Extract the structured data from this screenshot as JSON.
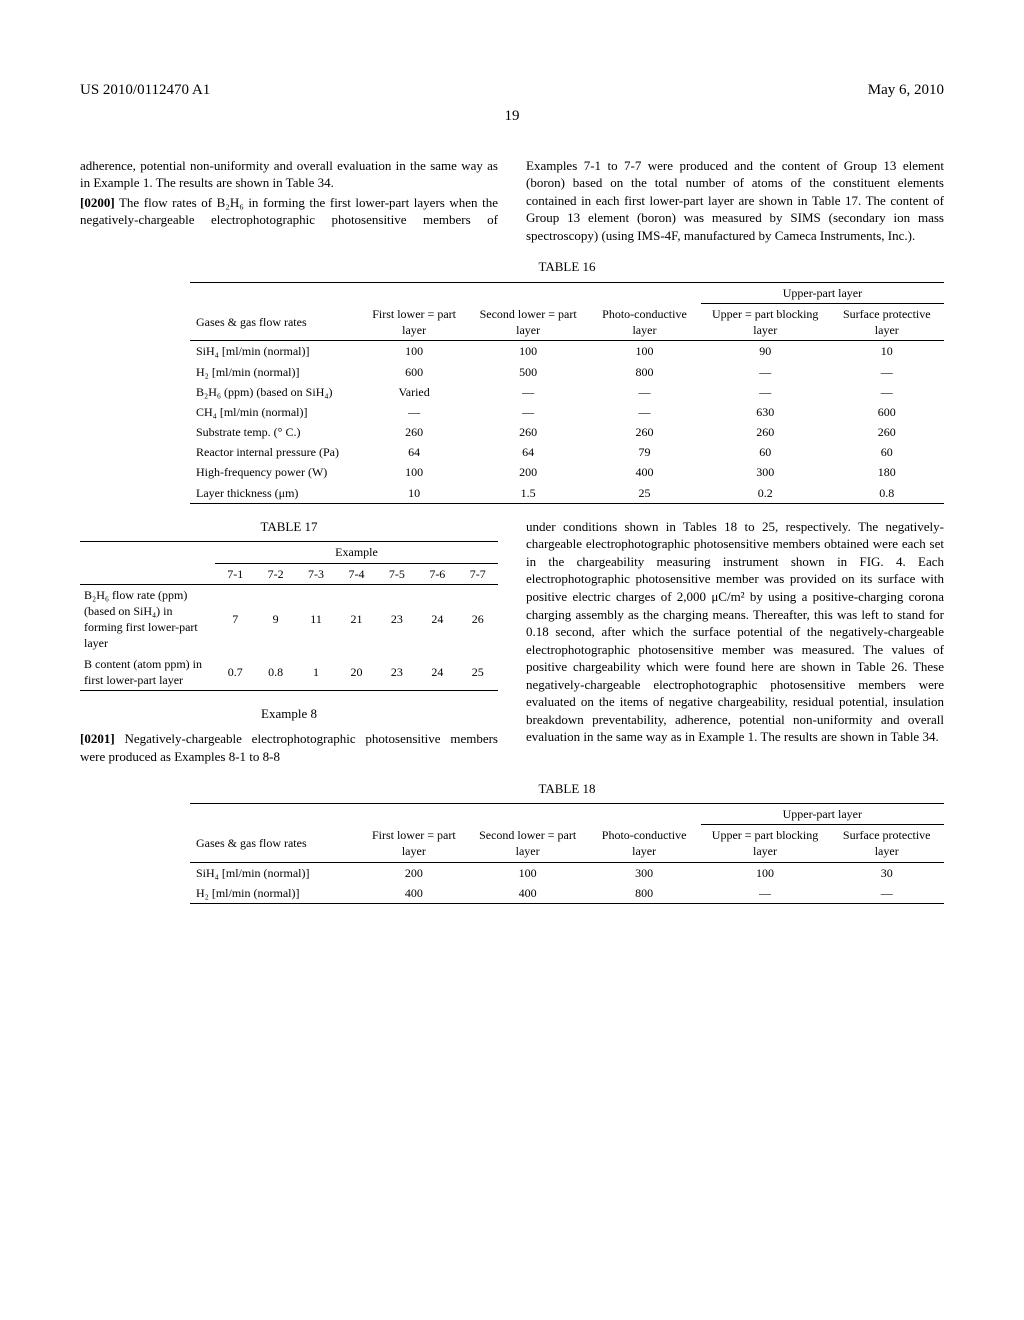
{
  "header": {
    "pub_number": "US 2010/0112470 A1",
    "date": "May 6, 2010",
    "page": "19"
  },
  "col1": {
    "p1": "adherence, potential non-uniformity and overall evaluation in the same way as in Example 1. The results are shown in Table 34.",
    "p2_num": "[0200]",
    "p2": " The flow rates of B₂H₆ in forming the first lower-part layers when the negatively-chargeable electrophotographic photosensitive members of Examples 7-1 to 7-7 were produced and the content of Group 13 element (boron) based on the total number of atoms of the constituent elements contained in each first lower-part layer are shown in Table 17. The content of Group 13 element (boron) was measured by SIMS (secondary ion mass spectroscopy) (using IMS-4F, manufactured by Cameca Instruments, Inc.)."
  },
  "table16": {
    "caption": "TABLE 16",
    "head_left": "Gases & gas flow rates",
    "head_c1": "First lower = part layer",
    "head_c2": "Second lower = part layer",
    "head_c3": "Photo-conductive layer",
    "head_upper": "Upper-part layer",
    "head_c4": "Upper = part blocking layer",
    "head_c5": "Surface protective layer",
    "rows": [
      {
        "l": "SiH₄ [ml/min (normal)]",
        "v": [
          "100",
          "100",
          "100",
          "90",
          "10"
        ]
      },
      {
        "l": "H₂ [ml/min (normal)]",
        "v": [
          "600",
          "500",
          "800",
          "—",
          "—"
        ]
      },
      {
        "l": "B₂H₆ (ppm) (based on SiH₄)",
        "v": [
          "Varied",
          "—",
          "—",
          "—",
          "—"
        ]
      },
      {
        "l": "CH₄ [ml/min (normal)]",
        "v": [
          "—",
          "—",
          "—",
          "630",
          "600"
        ]
      },
      {
        "l": "Substrate temp. (° C.)",
        "v": [
          "260",
          "260",
          "260",
          "260",
          "260"
        ]
      },
      {
        "l": "Reactor internal pressure (Pa)",
        "v": [
          "64",
          "64",
          "79",
          "60",
          "60"
        ]
      },
      {
        "l": "High-frequency power (W)",
        "v": [
          "100",
          "200",
          "400",
          "300",
          "180"
        ]
      },
      {
        "l": "Layer thickness (μm)",
        "v": [
          "10",
          "1.5",
          "25",
          "0.2",
          "0.8"
        ]
      }
    ]
  },
  "table17": {
    "caption": "TABLE 17",
    "ex_label": "Example",
    "cols": [
      "7-1",
      "7-2",
      "7-3",
      "7-4",
      "7-5",
      "7-6",
      "7-7"
    ],
    "row1_label": "B₂H₆ flow rate (ppm) (based on SiH₄) in forming first lower-part layer",
    "row1": [
      "7",
      "9",
      "11",
      "21",
      "23",
      "24",
      "26"
    ],
    "row2_label": "B content (atom ppm) in first lower-part layer",
    "row2": [
      "0.7",
      "0.8",
      "1",
      "20",
      "23",
      "24",
      "25"
    ]
  },
  "example8": {
    "heading": "Example 8",
    "p_num": "[0201]",
    "p_a": " Negatively-chargeable electrophotographic photosensitive members were produced as Examples 8-1 to 8-8",
    "p_b": "under conditions shown in Tables 18 to 25, respectively. The negatively-chargeable electrophotographic photosensitive members obtained were each set in the chargeability measuring instrument shown in FIG. 4. Each electrophotographic photosensitive member was provided on its surface with positive electric charges of 2,000 μC/m² by using a positive-charging corona charging assembly as the charging means. Thereafter, this was left to stand for 0.18 second, after which the surface potential of the negatively-chargeable electrophotographic photosensitive member was measured. The values of positive chargeability which were found here are shown in Table 26. These negatively-chargeable electrophotographic photosensitive members were evaluated on the items of negative chargeability, residual potential, insulation breakdown preventability, adherence, potential non-uniformity and overall evaluation in the same way as in Example 1. The results are shown in Table 34."
  },
  "table18": {
    "caption": "TABLE 18",
    "head_left": "Gases & gas flow rates",
    "head_c1": "First lower = part layer",
    "head_c2": "Second lower = part layer",
    "head_c3": "Photo-conductive layer",
    "head_upper": "Upper-part layer",
    "head_c4": "Upper = part blocking layer",
    "head_c5": "Surface protective layer",
    "rows": [
      {
        "l": "SiH₄ [ml/min (normal)]",
        "v": [
          "200",
          "100",
          "300",
          "100",
          "30"
        ]
      },
      {
        "l": "H₂ [ml/min (normal)]",
        "v": [
          "400",
          "400",
          "800",
          "—",
          "—"
        ]
      }
    ]
  }
}
